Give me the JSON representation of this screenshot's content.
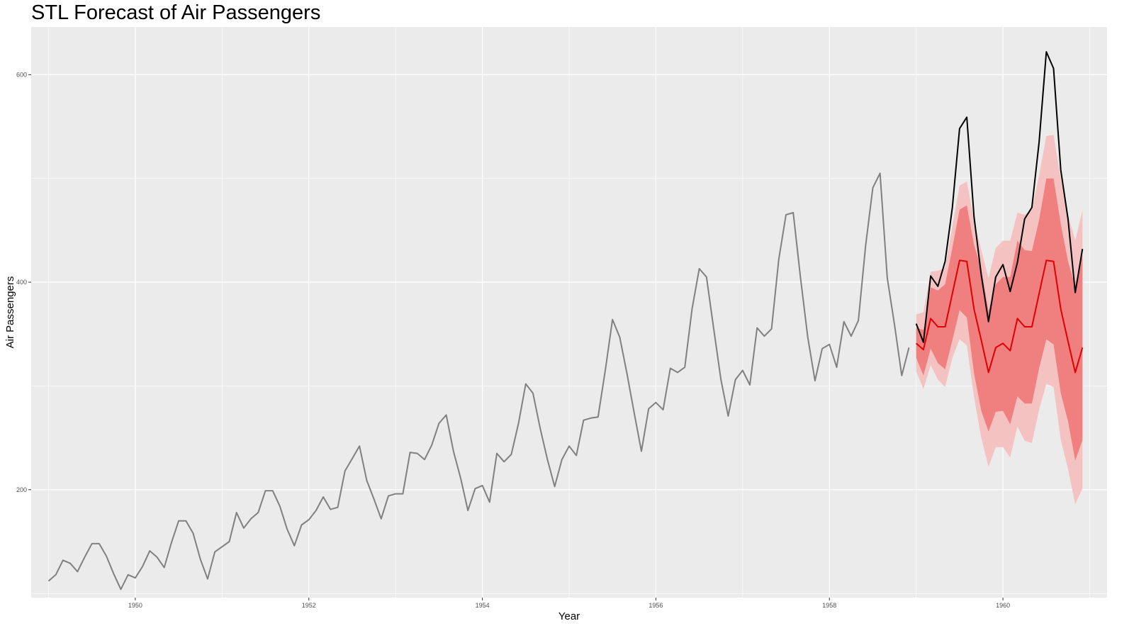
{
  "chart_data": {
    "type": "line",
    "title": "STL Forecast of Air Passengers",
    "xlabel": "Year",
    "ylabel": "Air Passengers",
    "xlim": [
      1948.8,
      1961.2
    ],
    "ylim": [
      96,
      646
    ],
    "x_ticks": [
      1950,
      1952,
      1954,
      1956,
      1958,
      1960
    ],
    "y_ticks": [
      200,
      400,
      600
    ],
    "grid": true,
    "background": "#ebebeb",
    "grid_color": "#ffffff",
    "history": {
      "start": 1949.0,
      "step": 0.0833333,
      "color": "#808080",
      "values": [
        112,
        118,
        132,
        129,
        121,
        135,
        148,
        148,
        136,
        119,
        104,
        118,
        115,
        126,
        141,
        135,
        125,
        149,
        170,
        170,
        158,
        133,
        114,
        140,
        145,
        150,
        178,
        163,
        172,
        178,
        199,
        199,
        184,
        162,
        146,
        166,
        171,
        180,
        193,
        181,
        183,
        218,
        230,
        242,
        209,
        191,
        172,
        194,
        196,
        196,
        236,
        235,
        229,
        243,
        264,
        272,
        237,
        211,
        180,
        201,
        204,
        188,
        235,
        227,
        234,
        264,
        302,
        293,
        259,
        229,
        203,
        229,
        242,
        233,
        267,
        269,
        270,
        315,
        364,
        347,
        312,
        274,
        237,
        278,
        284,
        277,
        317,
        313,
        318,
        374,
        413,
        405,
        355,
        306,
        271,
        306,
        315,
        301,
        356,
        348,
        355,
        422,
        465,
        467,
        404,
        347,
        305,
        336,
        340,
        318,
        362,
        348,
        363,
        435,
        491,
        505,
        404,
        359,
        310,
        337
      ]
    },
    "actual": {
      "start": 1959.0,
      "step": 0.0833333,
      "color": "#000000",
      "values": [
        360,
        342,
        406,
        396,
        420,
        472,
        548,
        559,
        463,
        407,
        362,
        405,
        417,
        391,
        419,
        461,
        472,
        535,
        622,
        606,
        508,
        461,
        390,
        432
      ]
    },
    "forecast": {
      "start": 1959.0,
      "step": 0.0833333,
      "color": "#e00000",
      "values": [
        341,
        335,
        365,
        357,
        357,
        389,
        421,
        420,
        374,
        344,
        313,
        337,
        341,
        334,
        365,
        357,
        357,
        389,
        421,
        420,
        374,
        343,
        313,
        337
      ],
      "lower80": [
        327,
        310,
        336,
        322,
        316,
        344,
        373,
        366,
        312,
        276,
        256,
        275,
        276,
        263,
        290,
        283,
        283,
        317,
        345,
        340,
        293,
        266,
        228,
        248
      ],
      "upper80": [
        356,
        354,
        395,
        392,
        398,
        433,
        470,
        474,
        436,
        413,
        372,
        398,
        405,
        405,
        440,
        431,
        430,
        460,
        500,
        500,
        456,
        420,
        396,
        426
      ],
      "lower95": [
        314,
        297,
        320,
        306,
        299,
        327,
        345,
        339,
        289,
        250,
        222,
        241,
        241,
        231,
        261,
        247,
        245,
        277,
        302,
        299,
        248,
        220,
        186,
        201
      ],
      "upper95": [
        369,
        371,
        410,
        411,
        414,
        454,
        493,
        497,
        460,
        431,
        404,
        433,
        440,
        440,
        467,
        465,
        470,
        503,
        541,
        542,
        500,
        465,
        440,
        469
      ],
      "band80_color": "#f08080",
      "band95_color": "#f5c2c2"
    }
  }
}
